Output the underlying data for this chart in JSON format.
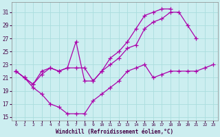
{
  "xlabel": "Windchill (Refroidissement éolien,°C)",
  "bg_color": "#cceef0",
  "grid_color": "#aadddd",
  "line_color": "#aa00aa",
  "xlim": [
    -0.5,
    23.5
  ],
  "ylim": [
    14.5,
    32.5
  ],
  "yticks": [
    15,
    17,
    19,
    21,
    23,
    25,
    27,
    29,
    31
  ],
  "xticks": [
    0,
    1,
    2,
    3,
    4,
    5,
    6,
    7,
    8,
    9,
    10,
    11,
    12,
    13,
    14,
    15,
    16,
    17,
    18,
    19,
    20,
    21,
    22,
    23
  ],
  "series1_x": [
    0,
    1,
    2,
    3,
    4,
    5,
    6,
    7,
    8,
    9,
    10,
    11,
    12,
    13,
    14,
    15,
    16,
    17,
    18,
    19,
    20,
    21,
    22,
    23
  ],
  "series1_y": [
    22.0,
    21.0,
    19.5,
    18.5,
    17.0,
    16.5,
    15.5,
    15.5,
    15.5,
    17.5,
    18.5,
    19.5,
    20.5,
    22.0,
    22.5,
    23.0,
    21.0,
    21.5,
    22.0,
    22.0,
    22.0,
    22.0,
    22.5,
    23.0
  ],
  "series2_x": [
    0,
    1,
    2,
    3,
    4,
    5,
    6,
    7,
    8,
    9,
    10,
    11,
    12,
    13,
    14,
    15,
    16,
    17,
    18,
    19,
    20,
    21,
    22,
    23
  ],
  "series2_y": [
    22.0,
    21.0,
    20.0,
    21.5,
    22.5,
    22.0,
    22.5,
    22.5,
    22.5,
    20.5,
    22.0,
    23.0,
    24.0,
    25.5,
    26.0,
    28.5,
    29.5,
    30.0,
    31.0,
    31.0,
    29.0,
    27.0,
    null,
    null
  ],
  "series3_x": [
    0,
    1,
    2,
    3,
    4,
    5,
    6,
    7,
    8,
    9,
    10,
    11,
    12,
    13,
    14,
    15,
    16,
    17,
    18,
    19,
    20,
    21,
    22,
    23
  ],
  "series3_y": [
    22.0,
    21.0,
    20.0,
    22.0,
    22.5,
    22.0,
    22.5,
    26.5,
    20.5,
    20.5,
    22.0,
    24.0,
    25.0,
    26.5,
    28.5,
    30.5,
    31.0,
    31.5,
    31.5,
    null,
    null,
    null,
    null,
    null
  ]
}
